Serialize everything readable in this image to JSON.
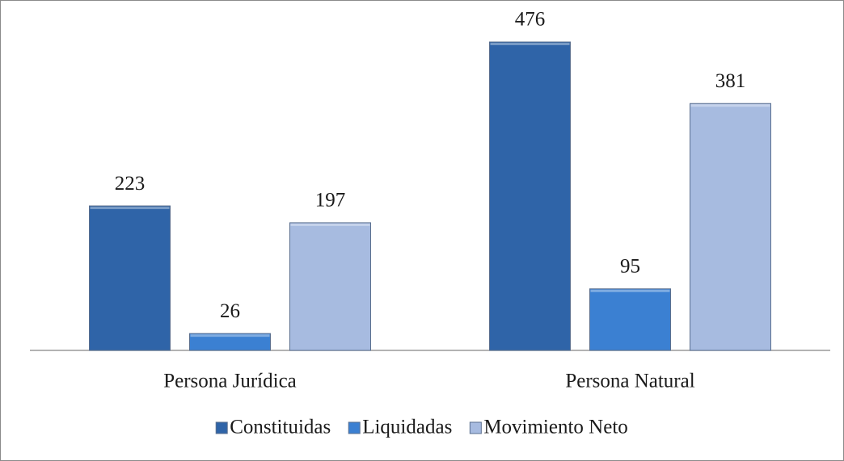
{
  "chart_data": {
    "type": "bar",
    "categories": [
      "Persona Jurídica",
      "Persona Natural"
    ],
    "series": [
      {
        "name": "Constituidas",
        "color": "#2f64a8",
        "values": [
          223,
          476
        ]
      },
      {
        "name": "Liquidadas",
        "color": "#3b80d2",
        "values": [
          26,
          95
        ]
      },
      {
        "name": "Movimiento Neto",
        "color": "#a7bbe0",
        "values": [
          197,
          381
        ]
      }
    ],
    "legend": "bottom"
  }
}
